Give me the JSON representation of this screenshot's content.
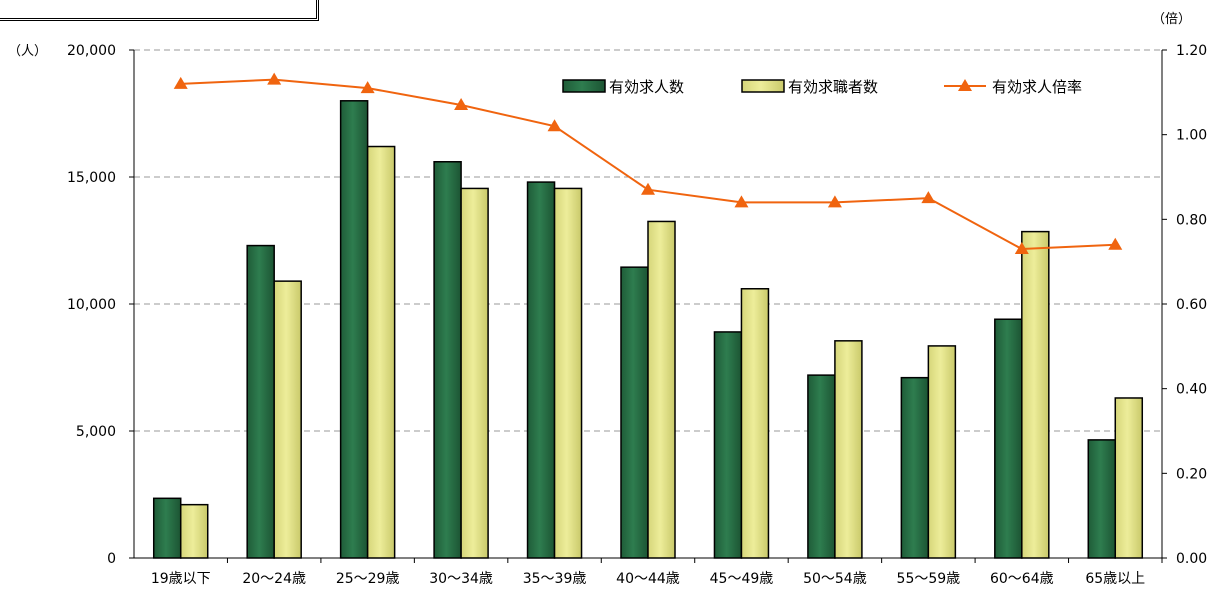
{
  "header": {
    "title_fragment": ""
  },
  "units": {
    "left": "（人）",
    "right": "（倍）"
  },
  "colors": {
    "green": "#2e7d4f",
    "yellow": "#eded9a",
    "line": "#f0640f",
    "grid": "#9a9a9a"
  },
  "chart_data": {
    "type": "bar",
    "categories": [
      "19歳以下",
      "20～24歳",
      "25～29歳",
      "30～34歳",
      "35～39歳",
      "40～44歳",
      "45～49歳",
      "50～54歳",
      "55～59歳",
      "60～64歳",
      "65歳以上"
    ],
    "series": [
      {
        "name": "有効求人数",
        "kind": "bar",
        "axis": "left",
        "values": [
          2350,
          12300,
          18000,
          15600,
          14800,
          11450,
          8900,
          7200,
          7100,
          9400,
          4650
        ]
      },
      {
        "name": "有効求職者数",
        "kind": "bar",
        "axis": "left",
        "values": [
          2100,
          10900,
          16200,
          14550,
          14550,
          13250,
          10600,
          8550,
          8350,
          12850,
          6300
        ]
      },
      {
        "name": "有効求人倍率",
        "kind": "line",
        "axis": "right",
        "values": [
          1.12,
          1.13,
          1.11,
          1.07,
          1.02,
          0.87,
          0.84,
          0.84,
          0.85,
          0.73,
          0.74
        ]
      }
    ],
    "y_left": {
      "min": 0,
      "max": 20000,
      "ticks": [
        "0",
        "5,000",
        "10,000",
        "15,000",
        "20,000"
      ]
    },
    "y_right": {
      "min": 0,
      "max": 1.2,
      "ticks": [
        "0.00",
        "0.20",
        "0.40",
        "0.60",
        "0.80",
        "1.00",
        "1.20"
      ]
    },
    "grid": "dashed horizontal at left-axis ticks",
    "legend": "top-right"
  }
}
